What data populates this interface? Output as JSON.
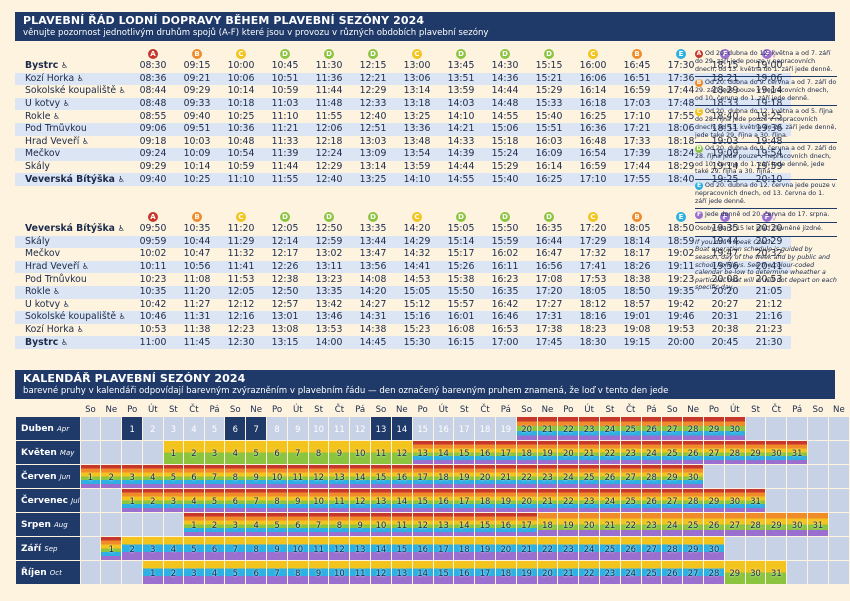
{
  "header": {
    "title": "PLAVEBNÍ ŘÁD LODNÍ DOPRAVY BĚHEM PLAVEBNÍ SEZÓNY 2024",
    "subtitle": "věnujte pozornost jednotlivým druhům spojů (A-F) které jsou v provozu v různých obdobích plavební sezóny"
  },
  "colors": {
    "A": "#c8372b",
    "B": "#f08b2a",
    "C": "#f3c41d",
    "D": "#8bc540",
    "E": "#2db0e3",
    "F": "#9b6fcf"
  },
  "outbound": {
    "letters": [
      "A",
      "B",
      "C",
      "D",
      "D",
      "D",
      "C",
      "D",
      "D",
      "D",
      "C",
      "B",
      "E",
      "F",
      "F"
    ],
    "suffixes": [
      "",
      "",
      "",
      "",
      "",
      "",
      "",
      "",
      "",
      "",
      "",
      "",
      "",
      "",
      "◊"
    ],
    "rows": [
      {
        "stop": "Bystrc",
        "acc": true,
        "bold": true,
        "times": [
          "08:30",
          "09:15",
          "10:00",
          "10:45",
          "11:30",
          "12:15",
          "13:00",
          "13:45",
          "14:30",
          "15:15",
          "16:00",
          "16:45",
          "17:30",
          "18:15",
          "19:00"
        ]
      },
      {
        "stop": "Kozí Horka",
        "acc": true,
        "bold": false,
        "times": [
          "08:36",
          "09:21",
          "10:06",
          "10:51",
          "11:36",
          "12:21",
          "13:06",
          "13:51",
          "14:36",
          "15:21",
          "16:06",
          "16:51",
          "17:36",
          "18:21",
          "19:06"
        ]
      },
      {
        "stop": "Sokolské koupaliště",
        "acc": true,
        "bold": false,
        "times": [
          "08:44",
          "09:29",
          "10:14",
          "10:59",
          "11:44",
          "12:29",
          "13:14",
          "13:59",
          "14:44",
          "15:29",
          "16:14",
          "16:59",
          "17:44",
          "18:29",
          "19:14"
        ]
      },
      {
        "stop": "U kotvy",
        "acc": true,
        "bold": false,
        "times": [
          "08:48",
          "09:33",
          "10:18",
          "11:03",
          "11:48",
          "12:33",
          "13:18",
          "14:03",
          "14:48",
          "15:33",
          "16:18",
          "17:03",
          "17:48",
          "18:33",
          "19:18"
        ]
      },
      {
        "stop": "Rokle",
        "acc": true,
        "bold": false,
        "times": [
          "08:55",
          "09:40",
          "10:25",
          "11:10",
          "11:55",
          "12:40",
          "13:25",
          "14:10",
          "14:55",
          "15:40",
          "16:25",
          "17:10",
          "17:55",
          "18:40",
          "19:25"
        ]
      },
      {
        "stop": "Pod Trnůvkou",
        "acc": false,
        "bold": false,
        "times": [
          "09:06",
          "09:51",
          "10:36",
          "11:21",
          "12:06",
          "12:51",
          "13:36",
          "14:21",
          "15:06",
          "15:51",
          "16:36",
          "17:21",
          "18:06",
          "18:51",
          "19:36"
        ]
      },
      {
        "stop": "Hrad Veveří",
        "acc": true,
        "bold": false,
        "times": [
          "09:18",
          "10:03",
          "10:48",
          "11:33",
          "12:18",
          "13:03",
          "13:48",
          "14:33",
          "15:18",
          "16:03",
          "16:48",
          "17:33",
          "18:18",
          "19:03",
          "19:48"
        ]
      },
      {
        "stop": "Mečkov",
        "acc": false,
        "bold": false,
        "times": [
          "09:24",
          "10:09",
          "10:54",
          "11:39",
          "12:24",
          "13:09",
          "13:54",
          "14:39",
          "15:24",
          "16:09",
          "16:54",
          "17:39",
          "18:24",
          "19:09",
          "19:54"
        ]
      },
      {
        "stop": "Skály",
        "acc": false,
        "bold": false,
        "times": [
          "09:29",
          "10:14",
          "10:59",
          "11:44",
          "12:29",
          "13:14",
          "13:59",
          "14:44",
          "15:29",
          "16:14",
          "16:59",
          "17:44",
          "18:29",
          "19:14",
          "19:59"
        ]
      },
      {
        "stop": "Veverská Bítýška",
        "acc": true,
        "bold": true,
        "times": [
          "09:40",
          "10:25",
          "11:10",
          "11:55",
          "12:40",
          "13:25",
          "14:10",
          "14:55",
          "15:40",
          "16:25",
          "17:10",
          "17:55",
          "18:40",
          "19:25",
          "20:10"
        ]
      }
    ]
  },
  "inbound": {
    "letters": [
      "A",
      "B",
      "C",
      "D",
      "D",
      "D",
      "C",
      "D",
      "D",
      "D",
      "C",
      "B",
      "E",
      "F",
      "F"
    ],
    "suffixes": [
      "",
      "",
      "",
      "",
      "",
      "",
      "",
      "",
      "",
      "",
      "",
      "",
      "",
      "",
      "◊"
    ],
    "rows": [
      {
        "stop": "Veverská Bítýška",
        "acc": true,
        "bold": true,
        "times": [
          "09:50",
          "10:35",
          "11:20",
          "12:05",
          "12:50",
          "13:35",
          "14:20",
          "15:05",
          "15:50",
          "16:35",
          "17:20",
          "18:05",
          "18:50",
          "19:35",
          "20:20"
        ]
      },
      {
        "stop": "Skály",
        "acc": false,
        "bold": false,
        "times": [
          "09:59",
          "10:44",
          "11:29",
          "12:14",
          "12:59",
          "13:44",
          "14:29",
          "15:14",
          "15:59",
          "16:44",
          "17:29",
          "18:14",
          "18:59",
          "19:44",
          "20:29"
        ]
      },
      {
        "stop": "Mečkov",
        "acc": false,
        "bold": false,
        "times": [
          "10:02",
          "10:47",
          "11:32",
          "12:17",
          "13:02",
          "13:47",
          "14:32",
          "15:17",
          "16:02",
          "16:47",
          "17:32",
          "18:17",
          "19:02",
          "19:47",
          "20:32"
        ]
      },
      {
        "stop": "Hrad Veveří",
        "acc": true,
        "bold": false,
        "times": [
          "10:11",
          "10:56",
          "11:41",
          "12:26",
          "13:11",
          "13:56",
          "14:41",
          "15:26",
          "16:11",
          "16:56",
          "17:41",
          "18:26",
          "19:11",
          "19:56",
          "20:41"
        ]
      },
      {
        "stop": "Pod Trnůvkou",
        "acc": false,
        "bold": false,
        "times": [
          "10:23",
          "11:08",
          "11:53",
          "12:38",
          "13:23",
          "14:08",
          "14:53",
          "15:38",
          "16:23",
          "17:08",
          "17:53",
          "18:38",
          "19:23",
          "20:08",
          "20:53"
        ]
      },
      {
        "stop": "Rokle",
        "acc": true,
        "bold": false,
        "times": [
          "10:35",
          "11:20",
          "12:05",
          "12:50",
          "13:35",
          "14:20",
          "15:05",
          "15:50",
          "16:35",
          "17:20",
          "18:05",
          "18:50",
          "19:35",
          "20:20",
          "21:05"
        ]
      },
      {
        "stop": "U kotvy",
        "acc": true,
        "bold": false,
        "times": [
          "10:42",
          "11:27",
          "12:12",
          "12:57",
          "13:42",
          "14:27",
          "15:12",
          "15:57",
          "16:42",
          "17:27",
          "18:12",
          "18:57",
          "19:42",
          "20:27",
          "21:12"
        ]
      },
      {
        "stop": "Sokolské koupaliště",
        "acc": true,
        "bold": false,
        "times": [
          "10:46",
          "11:31",
          "12:16",
          "13:01",
          "13:46",
          "14:31",
          "15:16",
          "16:01",
          "16:46",
          "17:31",
          "18:16",
          "19:01",
          "19:46",
          "20:31",
          "21:16"
        ]
      },
      {
        "stop": "Kozí Horka",
        "acc": true,
        "bold": false,
        "times": [
          "10:53",
          "11:38",
          "12:23",
          "13:08",
          "13:53",
          "14:38",
          "15:23",
          "16:08",
          "16:53",
          "17:38",
          "18:23",
          "19:08",
          "19:53",
          "20:38",
          "21:23"
        ]
      },
      {
        "stop": "Bystrc",
        "acc": true,
        "bold": true,
        "times": [
          "11:00",
          "11:45",
          "12:30",
          "13:15",
          "14:00",
          "14:45",
          "15:30",
          "16:15",
          "17:00",
          "17:45",
          "18:30",
          "19:15",
          "20:00",
          "20:45",
          "21:30"
        ]
      }
    ]
  },
  "notes": [
    {
      "letter": "A",
      "text": "Od 20. dubna do 12. května a od 7. září do 29. září jede pouze v nepracovních dnech, od 13. května do 1. září jede denně."
    },
    {
      "letter": "B",
      "text": "Od 20. dubna do 9. června a od 7. září do 29. září jede pouze v nepracovních dnech, od 10. června do 1. září jede denně."
    },
    {
      "letter": "C",
      "text": "Od 20. dubna do 12. května a od 5. října do 28. října jede pouze v nepracovních dnech, od 13. května do 29. září jede denně, jede také 29. října a 30. října."
    },
    {
      "letter": "D",
      "text": "Od 20. dubna do 9. června a od 7. září do 28. října jede pouze v nepracovních dnech, od 10. června do 1. září jede denně, jede také 29. října a 30. října."
    },
    {
      "letter": "E",
      "text": "Od 20. dubna do 12. června jede pouze v nepracovních dnech, od 13. června do 1. září jede denně."
    },
    {
      "letter": "F",
      "text": "Jede denně od 20. června do 17. srpna."
    }
  ],
  "note_discount": "Osoby starší 15 let platí zlevněné jízdné.",
  "note_czech_label": "If you don't speak Czech:",
  "note_english": "Boat operation schedule is guided by season, day of the week and by public and school holidays. See the colour-coded calendar be-low to determine wheather a particular boat will or will not depart on each specific day.",
  "calendar": {
    "title": "KALENDÁŘ PLAVEBNÍ SEZÓNY 2024",
    "subtitle": "barevné pruhy v kalendáři odpovídají barevným zvýrazněním v plavebním řádu — den označený barevným pruhem znamená, že loď v tento den jede",
    "weekdays": [
      "So",
      "Ne",
      "Po",
      "Út",
      "St",
      "Čt",
      "Pá",
      "So",
      "Ne",
      "Po",
      "Út",
      "St",
      "Čt",
      "Pá",
      "So",
      "Ne",
      "Po",
      "Út",
      "St",
      "Čt",
      "Pá",
      "So",
      "Ne",
      "Po",
      "Út",
      "St",
      "Čt",
      "Pá",
      "So",
      "Ne",
      "Po",
      "Út",
      "St",
      "Čt",
      "Pá",
      "So",
      "Ne"
    ],
    "months": [
      {
        "name": "Duben",
        "en": "Apr",
        "offset": 2,
        "days": 30
      },
      {
        "name": "Květen",
        "en": "May",
        "offset": 4,
        "days": 31
      },
      {
        "name": "Červen",
        "en": "Jun",
        "offset": 0,
        "days": 30
      },
      {
        "name": "Červenec",
        "en": "Jul",
        "offset": 2,
        "days": 31
      },
      {
        "name": "Srpen",
        "en": "Aug",
        "offset": 5,
        "days": 31
      },
      {
        "name": "Září",
        "en": "Sep",
        "offset": 1,
        "days": 30
      },
      {
        "name": "Říjen",
        "en": "Oct",
        "offset": 3,
        "days": 31
      }
    ]
  }
}
